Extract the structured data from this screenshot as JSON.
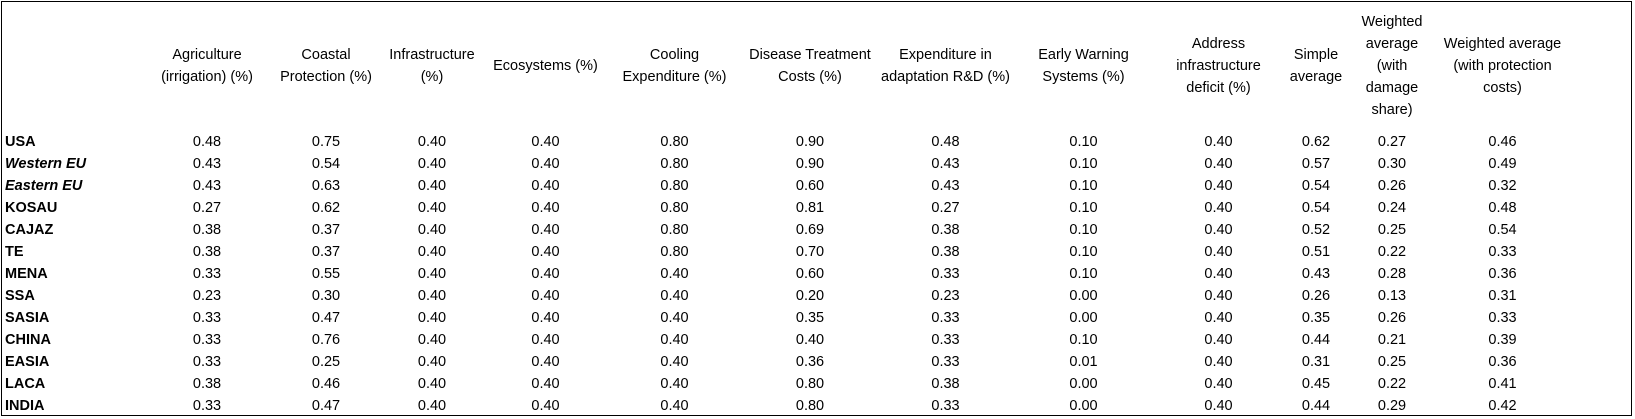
{
  "columns": [
    "",
    "Agriculture (irrigation) (%)",
    "Coastal Protection (%)",
    "Infrastructure (%)",
    "Ecosystems (%)",
    "Cooling Expenditure (%)",
    "Disease Treatment Costs (%)",
    "Expenditure in adaptation R&D (%)",
    "Early Warning Systems (%)",
    "Address infrastructure deficit (%)",
    "Simple average",
    "Weighted average (with damage share)",
    "Weighted average (with protection costs)"
  ],
  "rows": [
    {
      "region": "USA",
      "italic": false,
      "values": [
        "0.48",
        "0.75",
        "0.40",
        "0.40",
        "0.80",
        "0.90",
        "0.48",
        "0.10",
        "0.40",
        "0.62",
        "0.27",
        "0.46"
      ]
    },
    {
      "region": "Western EU",
      "italic": true,
      "values": [
        "0.43",
        "0.54",
        "0.40",
        "0.40",
        "0.80",
        "0.90",
        "0.43",
        "0.10",
        "0.40",
        "0.57",
        "0.30",
        "0.49"
      ]
    },
    {
      "region": "Eastern EU",
      "italic": true,
      "values": [
        "0.43",
        "0.63",
        "0.40",
        "0.40",
        "0.80",
        "0.60",
        "0.43",
        "0.10",
        "0.40",
        "0.54",
        "0.26",
        "0.32"
      ]
    },
    {
      "region": "KOSAU",
      "italic": false,
      "values": [
        "0.27",
        "0.62",
        "0.40",
        "0.40",
        "0.80",
        "0.81",
        "0.27",
        "0.10",
        "0.40",
        "0.54",
        "0.24",
        "0.48"
      ]
    },
    {
      "region": "CAJAZ",
      "italic": false,
      "values": [
        "0.38",
        "0.37",
        "0.40",
        "0.40",
        "0.80",
        "0.69",
        "0.38",
        "0.10",
        "0.40",
        "0.52",
        "0.25",
        "0.54"
      ]
    },
    {
      "region": "TE",
      "italic": false,
      "values": [
        "0.38",
        "0.37",
        "0.40",
        "0.40",
        "0.80",
        "0.70",
        "0.38",
        "0.10",
        "0.40",
        "0.51",
        "0.22",
        "0.33"
      ]
    },
    {
      "region": "MENA",
      "italic": false,
      "values": [
        "0.33",
        "0.55",
        "0.40",
        "0.40",
        "0.40",
        "0.60",
        "0.33",
        "0.10",
        "0.40",
        "0.43",
        "0.28",
        "0.36"
      ]
    },
    {
      "region": "SSA",
      "italic": false,
      "values": [
        "0.23",
        "0.30",
        "0.40",
        "0.40",
        "0.40",
        "0.20",
        "0.23",
        "0.00",
        "0.40",
        "0.26",
        "0.13",
        "0.31"
      ]
    },
    {
      "region": "SASIA",
      "italic": false,
      "values": [
        "0.33",
        "0.47",
        "0.40",
        "0.40",
        "0.40",
        "0.35",
        "0.33",
        "0.00",
        "0.40",
        "0.35",
        "0.26",
        "0.33"
      ]
    },
    {
      "region": "CHINA",
      "italic": false,
      "values": [
        "0.33",
        "0.76",
        "0.40",
        "0.40",
        "0.40",
        "0.40",
        "0.33",
        "0.10",
        "0.40",
        "0.44",
        "0.21",
        "0.39"
      ]
    },
    {
      "region": "EASIA",
      "italic": false,
      "values": [
        "0.33",
        "0.25",
        "0.40",
        "0.40",
        "0.40",
        "0.36",
        "0.33",
        "0.01",
        "0.40",
        "0.31",
        "0.25",
        "0.36"
      ]
    },
    {
      "region": "LACA",
      "italic": false,
      "values": [
        "0.38",
        "0.46",
        "0.40",
        "0.40",
        "0.40",
        "0.80",
        "0.38",
        "0.00",
        "0.40",
        "0.45",
        "0.22",
        "0.41"
      ]
    },
    {
      "region": "INDIA",
      "italic": false,
      "values": [
        "0.33",
        "0.47",
        "0.40",
        "0.40",
        "0.40",
        "0.80",
        "0.33",
        "0.00",
        "0.40",
        "0.44",
        "0.29",
        "0.42"
      ]
    }
  ]
}
